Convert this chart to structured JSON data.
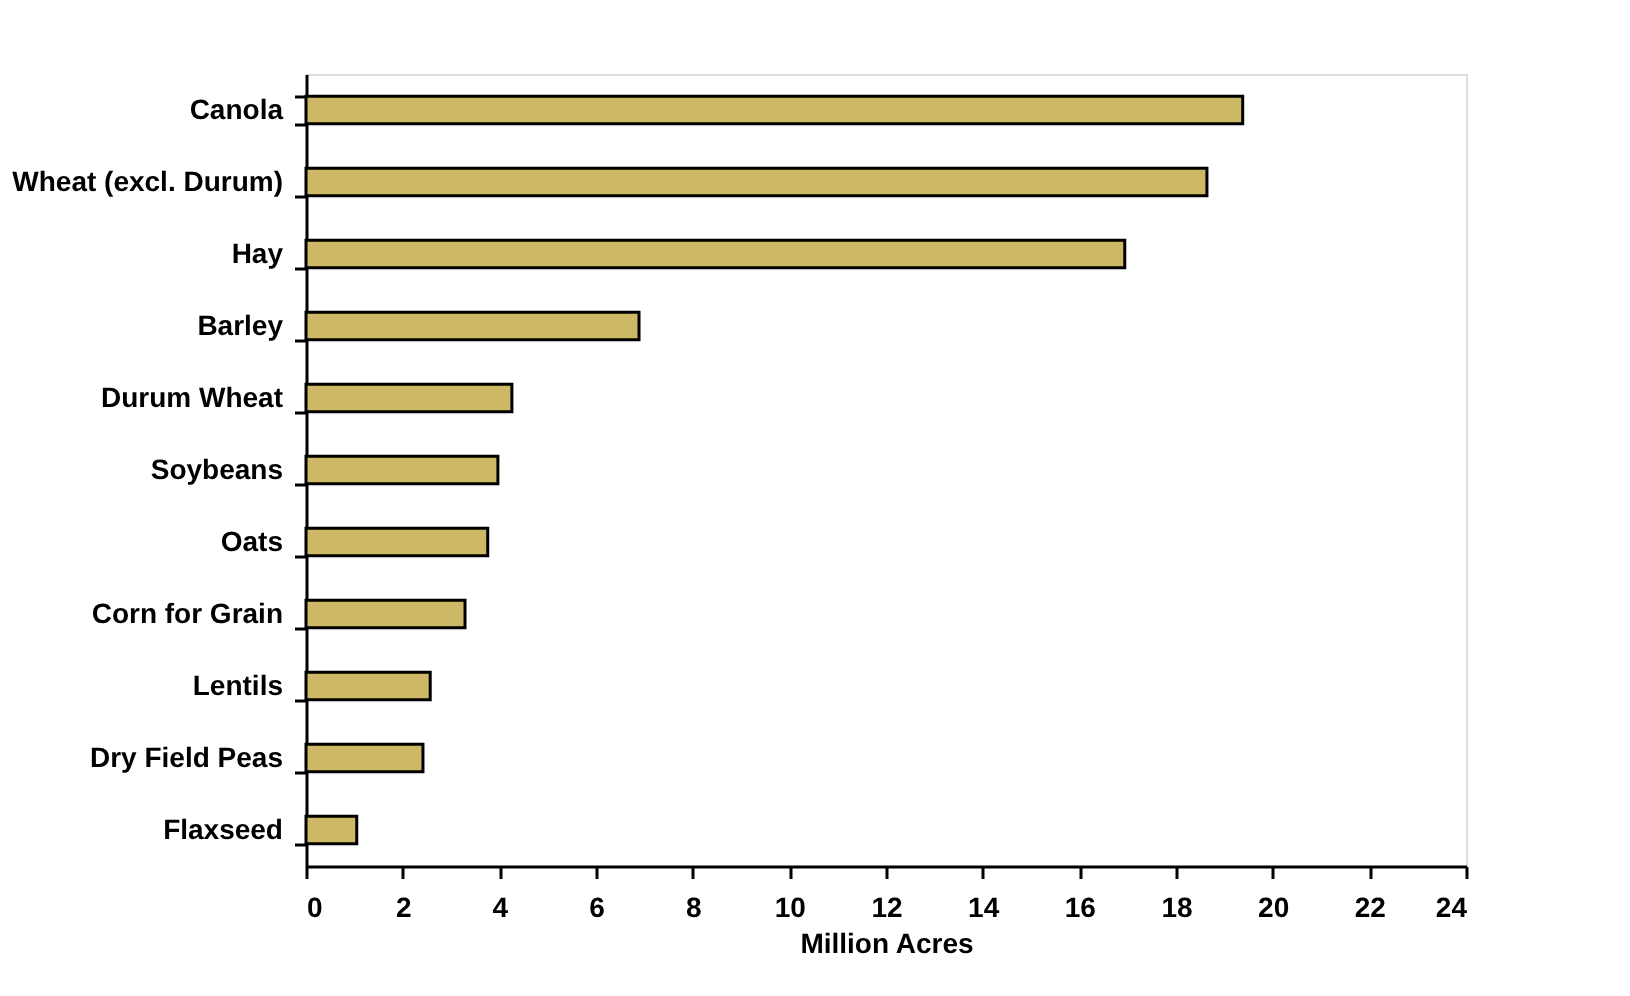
{
  "chart_data": {
    "type": "bar",
    "orientation": "horizontal",
    "xlabel": "Million Acres",
    "categories": [
      "Canola",
      "Wheat (excl. Durum)",
      "Hay",
      "Barley",
      "Durum Wheat",
      "Soybeans",
      "Oats",
      "Corn for Grain",
      "Lentils",
      "Dry Field Peas",
      "Flaxseed"
    ],
    "values": [
      19.38,
      18.64,
      16.94,
      6.89,
      4.26,
      3.97,
      3.76,
      3.29,
      2.57,
      2.42,
      1.05
    ],
    "color": "#cdb866",
    "xlim": [
      0,
      24
    ],
    "xticks": [
      0,
      2,
      4,
      6,
      8,
      10,
      12,
      14,
      16,
      18,
      20,
      22,
      24
    ],
    "grid": false
  }
}
